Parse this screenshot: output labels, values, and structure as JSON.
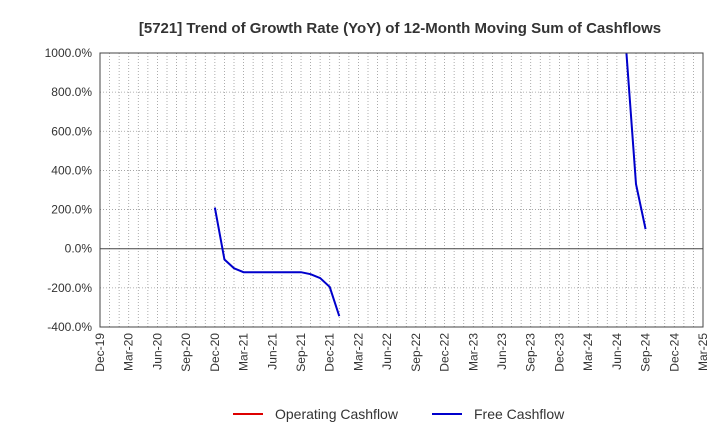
{
  "chart_data": {
    "type": "line",
    "title": "[5721]  Trend of Growth Rate (YoY) of 12-Month Moving Sum of Cashflows",
    "xlabel": "",
    "ylabel": "",
    "x_ticks": [
      "Dec-19",
      "Mar-20",
      "Jun-20",
      "Sep-20",
      "Dec-20",
      "Mar-21",
      "Jun-21",
      "Sep-21",
      "Dec-21",
      "Mar-22",
      "Jun-22",
      "Sep-22",
      "Dec-22",
      "Mar-23",
      "Jun-23",
      "Sep-23",
      "Dec-23",
      "Mar-24",
      "Jun-24",
      "Sep-24",
      "Dec-24",
      "Mar-25"
    ],
    "xlim": [
      "2019-12",
      "2025-03"
    ],
    "y_ticks": [
      -400,
      -200,
      0,
      200,
      400,
      600,
      800,
      1000
    ],
    "y_tick_labels": [
      "-400.0%",
      "-200.0%",
      "0.0%",
      "200.0%",
      "400.0%",
      "600.0%",
      "800.0%",
      "1000.0%"
    ],
    "ylim": [
      -400,
      1000
    ],
    "grid": "dotted vertical monthly, dotted horizontal, solid zero line",
    "legend_position": "bottom-center",
    "series": [
      {
        "name": "Operating Cashflow",
        "color": "#dd0000",
        "points": []
      },
      {
        "name": "Free Cashflow",
        "color": "#0000cc",
        "points": [
          {
            "x": "2020-12",
            "y": 210
          },
          {
            "x": "2021-01",
            "y": -55
          },
          {
            "x": "2021-02",
            "y": -100
          },
          {
            "x": "2021-03",
            "y": -120
          },
          {
            "x": "2021-04",
            "y": -120
          },
          {
            "x": "2021-05",
            "y": -120
          },
          {
            "x": "2021-06",
            "y": -120
          },
          {
            "x": "2021-07",
            "y": -120
          },
          {
            "x": "2021-08",
            "y": -120
          },
          {
            "x": "2021-09",
            "y": -120
          },
          {
            "x": "2021-10",
            "y": -130
          },
          {
            "x": "2021-11",
            "y": -150
          },
          {
            "x": "2021-12",
            "y": -195
          },
          {
            "x": "2022-01",
            "y": -345
          },
          {
            "x": "2024-07",
            "y": 1000
          },
          {
            "x": "2024-08",
            "y": 330
          },
          {
            "x": "2024-09",
            "y": 100
          }
        ]
      }
    ]
  }
}
